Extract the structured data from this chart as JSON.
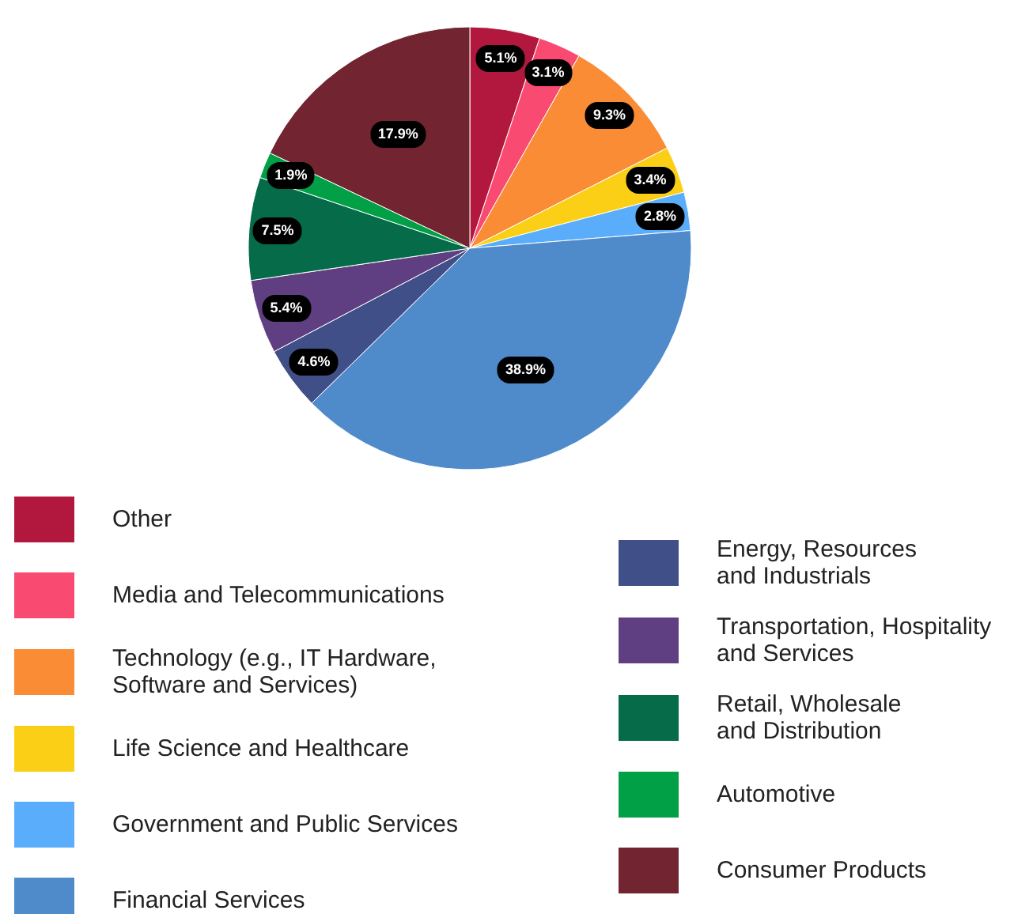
{
  "chart_data": {
    "type": "pie",
    "categories": [
      "Other",
      "Media and Telecommunications",
      "Technology (e.g., IT Hardware, Software and Services)",
      "Life Science and Healthcare",
      "Government and Public Services",
      "Financial Services",
      "Energy, Resources and Industrials",
      "Transportation, Hospitality and Services",
      "Retail, Wholesale and Distribution",
      "Automotive",
      "Consumer Products"
    ],
    "values": [
      5.1,
      3.1,
      9.3,
      3.4,
      2.8,
      38.9,
      4.6,
      5.4,
      7.5,
      1.9,
      17.9
    ],
    "colors": [
      "#b2183d",
      "#f94b72",
      "#f98c35",
      "#fccf17",
      "#5aadfb",
      "#4f8bcb",
      "#404f88",
      "#5f3f82",
      "#056b48",
      "#02a046",
      "#722530"
    ],
    "value_labels": [
      "5.1%",
      "3.1%",
      "9.3%",
      "3.4%",
      "2.8%",
      "38.9%",
      "4.6%",
      "5.4%",
      "7.5%",
      "1.9%",
      "17.9%"
    ],
    "legend": "bottom"
  }
}
